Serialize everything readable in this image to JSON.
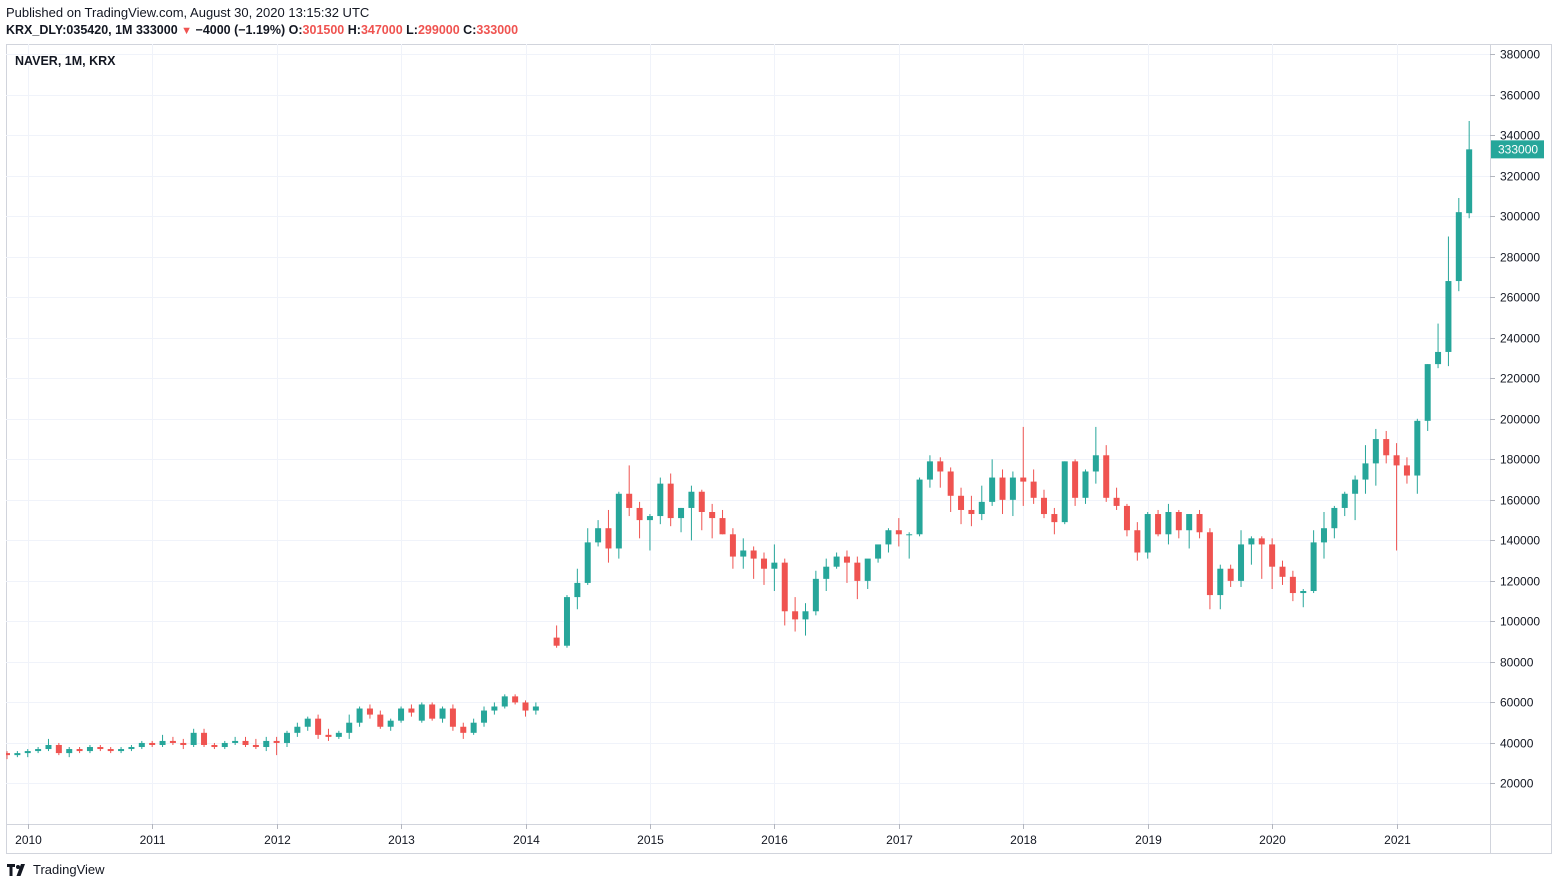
{
  "header": {
    "published": "Published on TradingView.com, August 30, 2020 13:15:32 UTC",
    "symbol": "KRX_DLY:035420, 1M",
    "last": "333000",
    "change": "−4000 (−1.19%)",
    "o_label": "O:",
    "o_value": "301500",
    "h_label": "H:",
    "h_value": "347000",
    "l_label": "L:",
    "l_value": "299000",
    "c_label": "C:",
    "c_value": "333000"
  },
  "chart_title": "NAVER, 1M, KRX",
  "footer": {
    "brand": "TradingView",
    "logo_icon": "tradingview-logo-icon"
  },
  "colors": {
    "up": "#26a69a",
    "down": "#ef5350",
    "grid": "#f0f3fa",
    "axis_text": "#131722",
    "price_tag": "#26a69a"
  },
  "chart_data": {
    "type": "candlestick",
    "title": "NAVER, 1M, KRX",
    "x_tick_labels": [
      "2010",
      "2011",
      "2012",
      "2013",
      "2014",
      "2015",
      "2016",
      "2017",
      "2018",
      "2019",
      "2020",
      "2021"
    ],
    "y_tick_labels": [
      "20000",
      "40000",
      "60000",
      "80000",
      "100000",
      "120000",
      "140000",
      "160000",
      "180000",
      "200000",
      "220000",
      "240000",
      "260000",
      "280000",
      "300000",
      "320000",
      "340000",
      "360000",
      "380000"
    ],
    "ylim": [
      0,
      385000
    ],
    "last_price_label": "333000",
    "grid": true,
    "start": "2009-11",
    "candles": [
      [
        35000,
        36000,
        32000,
        34000
      ],
      [
        34000,
        36000,
        33000,
        35000
      ],
      [
        35000,
        37000,
        33000,
        36000
      ],
      [
        36000,
        38000,
        35000,
        37000
      ],
      [
        37000,
        42000,
        36000,
        39000
      ],
      [
        39000,
        40000,
        34000,
        35000
      ],
      [
        35000,
        38000,
        33000,
        37000
      ],
      [
        37000,
        38000,
        35000,
        36000
      ],
      [
        36000,
        39000,
        35000,
        38000
      ],
      [
        38000,
        39000,
        36000,
        37000
      ],
      [
        37000,
        38000,
        35000,
        36000
      ],
      [
        36000,
        38000,
        35000,
        37000
      ],
      [
        37000,
        39000,
        36000,
        38000
      ],
      [
        38000,
        41000,
        37000,
        40000
      ],
      [
        40000,
        41000,
        38000,
        39000
      ],
      [
        39000,
        44000,
        38000,
        41000
      ],
      [
        41000,
        43000,
        39000,
        40000
      ],
      [
        40000,
        42000,
        37000,
        39000
      ],
      [
        39000,
        47000,
        38000,
        45000
      ],
      [
        45000,
        47000,
        38000,
        39000
      ],
      [
        39000,
        40000,
        37000,
        38000
      ],
      [
        38000,
        41000,
        37000,
        40000
      ],
      [
        40000,
        43000,
        39000,
        41000
      ],
      [
        41000,
        43000,
        38000,
        39000
      ],
      [
        39000,
        42000,
        37000,
        38000
      ],
      [
        38000,
        43000,
        36000,
        41000
      ],
      [
        41000,
        43000,
        34000,
        40000
      ],
      [
        40000,
        46000,
        38000,
        45000
      ],
      [
        45000,
        50000,
        43000,
        48000
      ],
      [
        48000,
        53000,
        46000,
        52000
      ],
      [
        52000,
        54000,
        42000,
        44000
      ],
      [
        44000,
        47000,
        41000,
        43000
      ],
      [
        43000,
        46000,
        42000,
        45000
      ],
      [
        45000,
        54000,
        42000,
        50000
      ],
      [
        50000,
        58000,
        48000,
        57000
      ],
      [
        57000,
        59000,
        52000,
        54000
      ],
      [
        54000,
        56000,
        47000,
        48000
      ],
      [
        48000,
        52000,
        46000,
        51000
      ],
      [
        51000,
        58000,
        50000,
        57000
      ],
      [
        57000,
        59000,
        53000,
        55000
      ],
      [
        51000,
        60000,
        50000,
        59000
      ],
      [
        59000,
        60000,
        51000,
        52000
      ],
      [
        52000,
        58000,
        50000,
        57000
      ],
      [
        57000,
        59000,
        46000,
        48000
      ],
      [
        48000,
        50000,
        42000,
        45000
      ],
      [
        45000,
        52000,
        44000,
        50000
      ],
      [
        50000,
        58000,
        48000,
        56000
      ],
      [
        56000,
        60000,
        54000,
        58000
      ],
      [
        58000,
        64000,
        57000,
        63000
      ],
      [
        63000,
        64000,
        59000,
        60000
      ],
      [
        60000,
        61000,
        53000,
        56000
      ],
      [
        56000,
        60000,
        54000,
        58000
      ],
      null,
      [
        92000,
        98000,
        87000,
        88000
      ],
      [
        88000,
        113000,
        87000,
        112000
      ],
      [
        112000,
        126000,
        106000,
        119000
      ],
      [
        119000,
        146000,
        118000,
        139000
      ],
      [
        139000,
        150000,
        137000,
        146000
      ],
      [
        146000,
        155000,
        129000,
        136000
      ],
      [
        136000,
        164000,
        131000,
        163000
      ],
      [
        163000,
        177000,
        152000,
        156000
      ],
      [
        156000,
        159000,
        141000,
        150000
      ],
      [
        150000,
        153000,
        135000,
        152000
      ],
      [
        152000,
        171000,
        148000,
        168000
      ],
      [
        168000,
        173000,
        147000,
        151000
      ],
      [
        151000,
        156000,
        144000,
        156000
      ],
      [
        156000,
        167000,
        140000,
        164000
      ],
      [
        164000,
        165000,
        145000,
        154000
      ],
      [
        154000,
        158000,
        141000,
        151000
      ],
      [
        151000,
        155000,
        143000,
        143000
      ],
      [
        143000,
        146000,
        126000,
        132000
      ],
      [
        132000,
        141000,
        126000,
        135000
      ],
      [
        135000,
        137000,
        121000,
        131000
      ],
      [
        131000,
        134000,
        118000,
        126000
      ],
      [
        126000,
        138000,
        115000,
        129000
      ],
      [
        129000,
        131000,
        98000,
        105000
      ],
      [
        105000,
        112000,
        95000,
        101000
      ],
      [
        101000,
        109000,
        93000,
        105000
      ],
      [
        105000,
        125000,
        103000,
        121000
      ],
      [
        121000,
        131000,
        115000,
        127000
      ],
      [
        127000,
        134000,
        126000,
        132000
      ],
      [
        132000,
        135000,
        119000,
        129000
      ],
      [
        129000,
        132000,
        111000,
        120000
      ],
      [
        120000,
        130000,
        116000,
        131000
      ],
      [
        131000,
        137000,
        129000,
        138000
      ],
      [
        138000,
        146000,
        134000,
        145000
      ],
      [
        145000,
        151000,
        137000,
        143000
      ],
      [
        143000,
        144000,
        131000,
        143000
      ],
      [
        143000,
        171000,
        142000,
        170000
      ],
      [
        170000,
        182000,
        166000,
        179000
      ],
      [
        179000,
        181000,
        166000,
        174000
      ],
      [
        174000,
        176000,
        154000,
        162000
      ],
      [
        162000,
        166000,
        148000,
        155000
      ],
      [
        155000,
        162000,
        147000,
        153000
      ],
      [
        153000,
        167000,
        150000,
        159000
      ],
      [
        159000,
        180000,
        157000,
        171000
      ],
      [
        171000,
        175000,
        153000,
        160000
      ],
      [
        160000,
        174000,
        152000,
        171000
      ],
      [
        171000,
        196000,
        157000,
        169000
      ],
      [
        169000,
        175000,
        158000,
        161000
      ],
      [
        161000,
        165000,
        151000,
        153000
      ],
      [
        153000,
        156000,
        143000,
        149000
      ],
      [
        149000,
        179000,
        148000,
        179000
      ],
      [
        179000,
        180000,
        157000,
        161000
      ],
      [
        161000,
        175000,
        158000,
        174000
      ],
      [
        174000,
        196000,
        168000,
        182000
      ],
      [
        182000,
        187000,
        159000,
        161000
      ],
      [
        161000,
        166000,
        155000,
        157000
      ],
      [
        157000,
        158000,
        142000,
        145000
      ],
      [
        145000,
        149000,
        130000,
        134000
      ],
      [
        134000,
        154000,
        131000,
        153000
      ],
      [
        153000,
        155000,
        142000,
        143000
      ],
      [
        143000,
        158000,
        138000,
        154000
      ],
      [
        154000,
        155000,
        141000,
        145000
      ],
      [
        145000,
        153000,
        136000,
        153000
      ],
      [
        153000,
        155000,
        141000,
        144000
      ],
      [
        144000,
        146000,
        106000,
        113000
      ],
      [
        113000,
        128000,
        106000,
        126000
      ],
      [
        126000,
        128000,
        117000,
        120000
      ],
      [
        120000,
        145000,
        117000,
        138000
      ],
      [
        138000,
        142000,
        128000,
        141000
      ],
      [
        141000,
        142000,
        121000,
        138000
      ],
      [
        138000,
        141000,
        116000,
        127000
      ],
      [
        127000,
        130000,
        118000,
        122000
      ],
      [
        122000,
        125000,
        110000,
        114000
      ],
      [
        114000,
        116000,
        107000,
        115000
      ],
      [
        115000,
        145000,
        114000,
        139000
      ],
      [
        139000,
        154000,
        131000,
        146000
      ],
      [
        146000,
        157000,
        141000,
        156000
      ],
      [
        156000,
        164000,
        152000,
        163000
      ],
      [
        163000,
        172000,
        150000,
        170000
      ],
      [
        170000,
        187000,
        163000,
        178000
      ],
      [
        178000,
        195000,
        167000,
        190000
      ],
      [
        190000,
        194000,
        178000,
        182000
      ],
      [
        182000,
        188000,
        135000,
        177000
      ],
      [
        177000,
        181000,
        168000,
        172000
      ],
      [
        172000,
        200000,
        163000,
        199000
      ],
      [
        199000,
        227000,
        194000,
        227000
      ],
      [
        227000,
        247000,
        225000,
        233000
      ],
      [
        233000,
        290000,
        226000,
        268000
      ],
      [
        268000,
        309000,
        263000,
        302000
      ],
      [
        301500,
        347000,
        299000,
        333000
      ]
    ]
  }
}
